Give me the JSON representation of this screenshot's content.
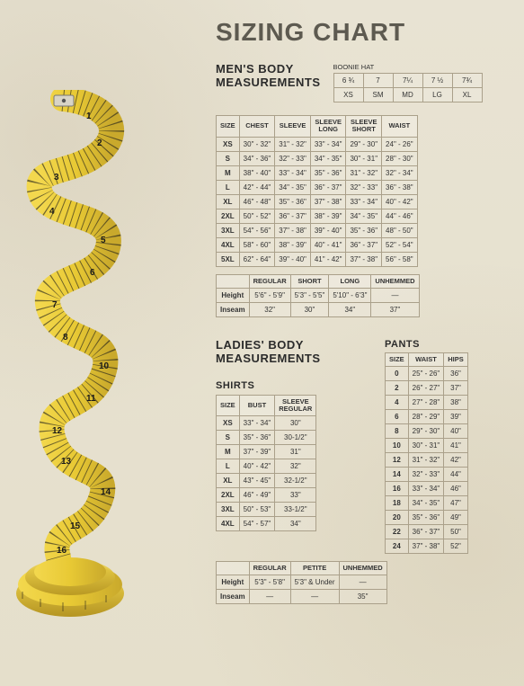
{
  "title": "SIZING CHART",
  "mens": {
    "heading1": "MEN'S BODY",
    "heading2": "MEASUREMENTS",
    "boonie": {
      "label": "BOONIE HAT",
      "top": [
        "6 ¾",
        "7",
        "7¼",
        "7 ½",
        "7¾"
      ],
      "bottom": [
        "XS",
        "SM",
        "MD",
        "LG",
        "XL"
      ]
    },
    "main": {
      "headers": [
        "SIZE",
        "CHEST",
        "SLEEVE",
        "SLEEVE LONG",
        "SLEEVE SHORT",
        "WAIST"
      ],
      "rows": [
        [
          "XS",
          "30\" - 32\"",
          "31\" - 32\"",
          "33\" - 34\"",
          "29\" - 30\"",
          "24\" - 26\""
        ],
        [
          "S",
          "34\" - 36\"",
          "32\" - 33\"",
          "34\" - 35\"",
          "30\" - 31\"",
          "28\" - 30\""
        ],
        [
          "M",
          "38\" - 40\"",
          "33\" - 34\"",
          "35\" - 36\"",
          "31\" - 32\"",
          "32\" - 34\""
        ],
        [
          "L",
          "42\" - 44\"",
          "34\" - 35\"",
          "36\" - 37\"",
          "32\" - 33\"",
          "36\" - 38\""
        ],
        [
          "XL",
          "46\" - 48\"",
          "35\" - 36\"",
          "37\" - 38\"",
          "33\" - 34\"",
          "40\" - 42\""
        ],
        [
          "2XL",
          "50\" - 52\"",
          "36\" - 37\"",
          "38\" - 39\"",
          "34\" - 35\"",
          "44\" - 46\""
        ],
        [
          "3XL",
          "54\" - 56\"",
          "37\" - 38\"",
          "39\" - 40\"",
          "35\" - 36\"",
          "48\" - 50\""
        ],
        [
          "4XL",
          "58\" - 60\"",
          "38\" - 39\"",
          "40\" - 41\"",
          "36\" - 37\"",
          "52\" - 54\""
        ],
        [
          "5XL",
          "62\" - 64\"",
          "39\" - 40\"",
          "41\" - 42\"",
          "37\" - 38\"",
          "56\" - 58\""
        ]
      ]
    },
    "length": {
      "headers": [
        "",
        "REGULAR",
        "SHORT",
        "LONG",
        "UNHEMMED"
      ],
      "rows": [
        [
          "Height",
          "5'6\" - 5'9\"",
          "5'3\" - 5'5\"",
          "5'10\" - 6'3\"",
          "—"
        ],
        [
          "Inseam",
          "32\"",
          "30\"",
          "34\"",
          "37\""
        ]
      ]
    }
  },
  "ladies": {
    "heading1": "LADIES' BODY",
    "heading2": "MEASUREMENTS",
    "shirtsLabel": "SHIRTS",
    "pantsLabel": "PANTS",
    "shirts": {
      "headers": [
        "SIZE",
        "BUST",
        "SLEEVE REGULAR"
      ],
      "rows": [
        [
          "XS",
          "33\" - 34\"",
          "30\""
        ],
        [
          "S",
          "35\" - 36\"",
          "30-1/2\""
        ],
        [
          "M",
          "37\" - 39\"",
          "31\""
        ],
        [
          "L",
          "40\" - 42\"",
          "32\""
        ],
        [
          "XL",
          "43\" - 45\"",
          "32-1/2\""
        ],
        [
          "2XL",
          "46\" - 49\"",
          "33\""
        ],
        [
          "3XL",
          "50\" - 53\"",
          "33-1/2\""
        ],
        [
          "4XL",
          "54\" - 57\"",
          "34\""
        ]
      ]
    },
    "pants": {
      "headers": [
        "SIZE",
        "WAIST",
        "HIPS"
      ],
      "rows": [
        [
          "0",
          "25\" - 26\"",
          "36\""
        ],
        [
          "2",
          "26\" - 27\"",
          "37\""
        ],
        [
          "4",
          "27\" - 28\"",
          "38\""
        ],
        [
          "6",
          "28\" - 29\"",
          "39\""
        ],
        [
          "8",
          "29\" - 30\"",
          "40\""
        ],
        [
          "10",
          "30\" - 31\"",
          "41\""
        ],
        [
          "12",
          "31\" - 32\"",
          "42\""
        ],
        [
          "14",
          "32\" - 33\"",
          "44\""
        ],
        [
          "16",
          "33\" - 34\"",
          "46\""
        ],
        [
          "18",
          "34\" - 35\"",
          "47\""
        ],
        [
          "20",
          "35\" - 36\"",
          "49\""
        ],
        [
          "22",
          "36\" - 37\"",
          "50\""
        ],
        [
          "24",
          "37\" - 38\"",
          "52\""
        ]
      ]
    },
    "length": {
      "headers": [
        "",
        "REGULAR",
        "PETITE",
        "UNHEMMED"
      ],
      "rows": [
        [
          "Height",
          "5'3\" - 5'8\"",
          "5'3\" & Under",
          "—"
        ],
        [
          "Inseam",
          "—",
          "—",
          "35\""
        ]
      ]
    }
  },
  "style": {
    "bg": "#e8e3d3",
    "border": "#aaa08a",
    "titleColor": "#5d5a50",
    "text": "#333333",
    "tapeYellow": "#e8c934",
    "tapeDark": "#9a8120",
    "tapeMark": "#1a1a1a"
  }
}
